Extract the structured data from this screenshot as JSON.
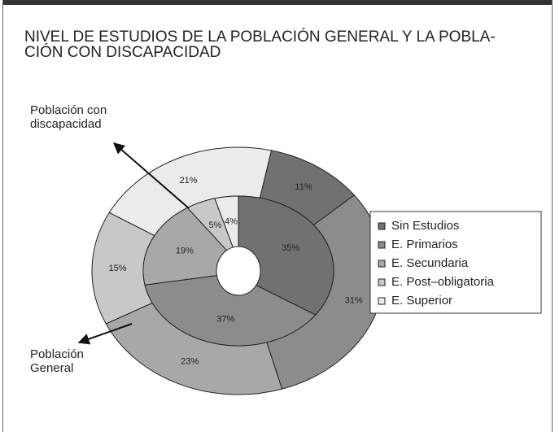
{
  "chart_data": {
    "type": "nested-donut",
    "title": [
      "NIVEL DE ESTUDIOS DE LA POBLACIÓN GENERAL Y LA POBLA-",
      "CIÓN CON DISCAPACIDAD"
    ],
    "categories": [
      "Sin Estudios",
      "E. Primarios",
      "E. Secundaria",
      "E. Post–obligatoria",
      "E. Superior"
    ],
    "colors": [
      "#717171",
      "#8c8c8c",
      "#a8a8a8",
      "#c8c8c8",
      "#ebebeb"
    ],
    "series": [
      {
        "name": "Población General",
        "values": [
          11,
          31,
          23,
          15,
          21
        ],
        "value_labels": [
          "11%",
          "31%",
          "23%",
          "15%",
          "21%"
        ]
      },
      {
        "name": "Población con discapacidad",
        "values": [
          35,
          37,
          19,
          5,
          4
        ],
        "value_labels": [
          "35%",
          "37%",
          "19%",
          "5%",
          "4%"
        ]
      }
    ],
    "legend": "right"
  }
}
